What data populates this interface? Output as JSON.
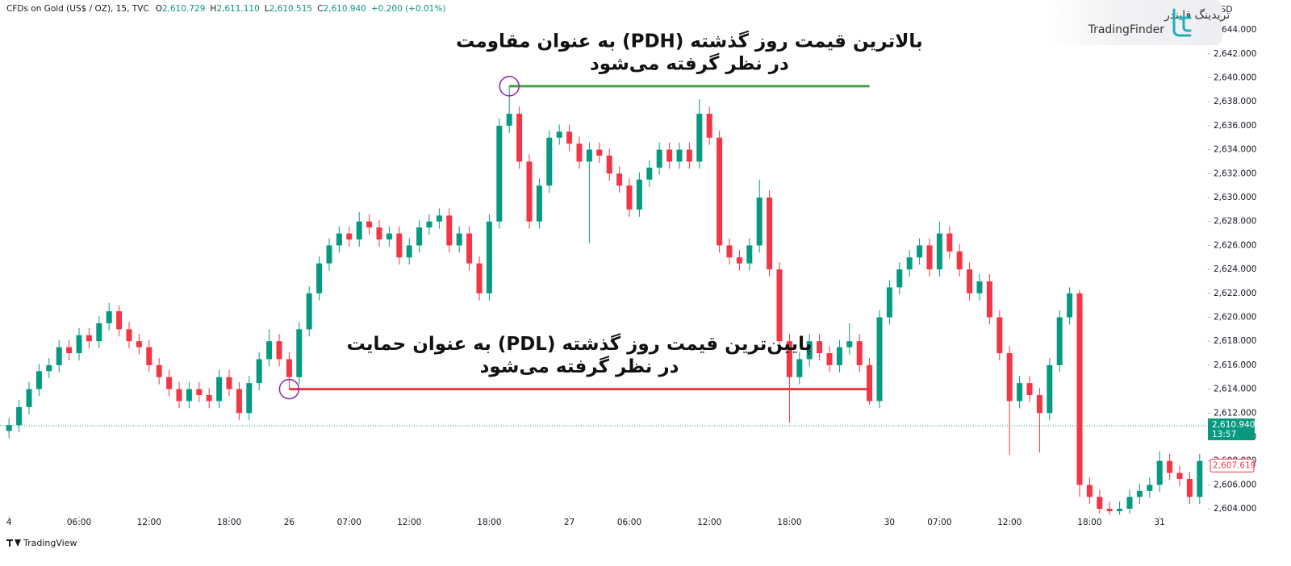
{
  "chart_data": {
    "type": "candlestick",
    "header": {
      "symbol": "CFDs on Gold (US$ / OZ), 15, TVC",
      "items": [
        {
          "key": "O",
          "value": "2,610.729"
        },
        {
          "key": "H",
          "value": "2,611.110"
        },
        {
          "key": "L",
          "value": "2,610.515"
        },
        {
          "key": "C",
          "value": "2,610.940"
        }
      ],
      "change": "+0.200 (+0.01%)"
    },
    "currency": "USD",
    "logo": {
      "fa": "تریدینگ فایندر",
      "en": "TradingFinder"
    },
    "footer": "TradingView",
    "up_color": "#089981",
    "down_color": "#f23645",
    "grid": false,
    "count": 120,
    "xticks": [
      {
        "value": 0,
        "label": "4"
      },
      {
        "value": 7,
        "label": "06:00"
      },
      {
        "value": 14,
        "label": "12:00"
      },
      {
        "value": 22,
        "label": "18:00"
      },
      {
        "value": 28,
        "label": "26"
      },
      {
        "value": 34,
        "label": "07:00"
      },
      {
        "value": 40,
        "label": "12:00"
      },
      {
        "value": 48,
        "label": "18:00"
      },
      {
        "value": 56,
        "label": "27"
      },
      {
        "value": 62,
        "label": "06:00"
      },
      {
        "value": 70,
        "label": "12:00"
      },
      {
        "value": 78,
        "label": "18:00"
      },
      {
        "value": 88,
        "label": "30"
      },
      {
        "value": 93,
        "label": "07:00"
      },
      {
        "value": 100,
        "label": "12:00"
      },
      {
        "value": 108,
        "label": "18:00"
      },
      {
        "value": 115,
        "label": "31"
      }
    ],
    "ylim": [
      2603.4,
      2646.5
    ],
    "yticks": [
      {
        "value": 2604,
        "label": "2,604.000"
      },
      {
        "value": 2606,
        "label": "2,606.000"
      },
      {
        "value": 2608,
        "label": "2,608.000"
      },
      {
        "value": 2610,
        "label": "2,610.000"
      },
      {
        "value": 2612,
        "label": "2,612.000"
      },
      {
        "value": 2614,
        "label": "2,614.000"
      },
      {
        "value": 2616,
        "label": "2,616.000"
      },
      {
        "value": 2618,
        "label": "2,618.000"
      },
      {
        "value": 2620,
        "label": "2,620.000"
      },
      {
        "value": 2622,
        "label": "2,622.000"
      },
      {
        "value": 2624,
        "label": "2,624.000"
      },
      {
        "value": 2626,
        "label": "2,626.000"
      },
      {
        "value": 2628,
        "label": "2,628.000"
      },
      {
        "value": 2630,
        "label": "2,630.000"
      },
      {
        "value": 2632,
        "label": "2,632.000"
      },
      {
        "value": 2634,
        "label": "2,634.000"
      },
      {
        "value": 2636,
        "label": "2,636.000"
      },
      {
        "value": 2638,
        "label": "2,638.000"
      },
      {
        "value": 2640,
        "label": "2,640.000"
      },
      {
        "value": 2642,
        "label": "2,642.000"
      },
      {
        "value": 2644,
        "label": "2,644.000"
      }
    ],
    "open": [
      2610.5,
      2611.0,
      2612.5,
      2614.0,
      2615.5,
      2616.0,
      2617.5,
      2617.0,
      2618.5,
      2618.0,
      2619.5,
      2620.5,
      2619.0,
      2618.0,
      2617.5,
      2616.0,
      2615.0,
      2614.0,
      2613.0,
      2614.0,
      2613.5,
      2613.0,
      2615.0,
      2614.0,
      2612.0,
      2614.5,
      2616.5,
      2618.0,
      2616.5,
      2615.0,
      2619.0,
      2622.0,
      2624.5,
      2626.0,
      2627.0,
      2626.5,
      2628.0,
      2627.5,
      2626.5,
      2627.0,
      2625.0,
      2626.0,
      2627.5,
      2628.0,
      2628.5,
      2626.0,
      2627.0,
      2624.5,
      2622.0,
      2628.0,
      2636.0,
      2637.0,
      2633.0,
      2628.0,
      2631.0,
      2635.0,
      2635.5,
      2634.5,
      2633.0,
      2634.0,
      2633.5,
      2632.0,
      2631.0,
      2629.0,
      2631.5,
      2632.5,
      2634.0,
      2633.0,
      2634.0,
      2633.0,
      2637.0,
      2635.0,
      2626.0,
      2625.0,
      2624.5,
      2626.0,
      2630.0,
      2624.0,
      2618.0,
      2615.0,
      2616.5,
      2618.0,
      2617.0,
      2616.0,
      2617.5,
      2618.0,
      2616.0,
      2613.0,
      2620.0,
      2622.5,
      2624.0,
      2625.0,
      2626.0,
      2624.0,
      2627.0,
      2625.5,
      2624.0,
      2622.0,
      2623.0,
      2620.0,
      2617.0,
      2613.0,
      2614.5,
      2613.5,
      2612.0,
      2616.0,
      2620.0,
      2622.0,
      2606.0,
      2605.0,
      2604.0,
      2603.8,
      2604.0,
      2605.0,
      2605.5,
      2606.0,
      2608.0,
      2607.0,
      2606.5,
      2605.0
    ],
    "high": [
      2611.6,
      2613.1,
      2614.6,
      2616.1,
      2616.6,
      2618.1,
      2618.1,
      2619.1,
      2619.1,
      2620.1,
      2621.2,
      2621.0,
      2619.6,
      2618.6,
      2618.1,
      2616.6,
      2615.6,
      2614.6,
      2614.6,
      2614.6,
      2614.1,
      2615.6,
      2615.6,
      2614.6,
      2615.1,
      2617.1,
      2619.0,
      2618.6,
      2617.1,
      2619.6,
      2622.6,
      2625.1,
      2626.6,
      2627.6,
      2627.6,
      2628.8,
      2628.6,
      2628.1,
      2627.6,
      2627.6,
      2626.6,
      2628.1,
      2628.6,
      2629.1,
      2629.1,
      2627.6,
      2627.6,
      2625.1,
      2628.6,
      2636.6,
      2639.3,
      2637.6,
      2633.6,
      2631.6,
      2635.6,
      2636.1,
      2636.1,
      2635.1,
      2634.6,
      2634.6,
      2634.1,
      2632.6,
      2631.6,
      2632.1,
      2633.1,
      2634.6,
      2634.6,
      2634.6,
      2634.6,
      2638.2,
      2637.6,
      2635.6,
      2626.6,
      2625.6,
      2626.6,
      2631.5,
      2630.6,
      2624.6,
      2618.6,
      2617.1,
      2618.6,
      2618.6,
      2617.6,
      2618.1,
      2619.5,
      2618.6,
      2616.6,
      2620.6,
      2623.1,
      2624.6,
      2625.6,
      2626.6,
      2626.6,
      2628.0,
      2627.6,
      2626.1,
      2624.6,
      2623.6,
      2623.6,
      2620.6,
      2617.6,
      2615.1,
      2615.1,
      2614.1,
      2616.6,
      2620.6,
      2622.5,
      2622.3,
      2606.6,
      2605.6,
      2604.6,
      2604.6,
      2605.6,
      2606.1,
      2606.6,
      2608.8,
      2608.6,
      2607.6,
      2607.1,
      2608.6
    ],
    "low": [
      2609.9,
      2610.4,
      2611.9,
      2613.4,
      2614.9,
      2615.4,
      2616.4,
      2616.4,
      2617.4,
      2617.4,
      2618.9,
      2618.4,
      2617.4,
      2616.9,
      2615.4,
      2614.4,
      2613.4,
      2612.4,
      2612.4,
      2612.9,
      2612.4,
      2612.4,
      2613.4,
      2611.4,
      2611.4,
      2613.9,
      2615.9,
      2615.9,
      2614.0,
      2614.4,
      2618.4,
      2621.4,
      2623.9,
      2625.4,
      2625.9,
      2625.9,
      2626.9,
      2625.9,
      2625.9,
      2624.4,
      2624.4,
      2625.4,
      2626.9,
      2627.4,
      2625.4,
      2625.4,
      2623.9,
      2621.4,
      2621.4,
      2627.4,
      2635.4,
      2632.4,
      2627.4,
      2627.4,
      2630.4,
      2634.4,
      2633.9,
      2632.4,
      2626.2,
      2632.9,
      2631.4,
      2630.4,
      2628.4,
      2628.4,
      2630.9,
      2631.9,
      2632.4,
      2632.4,
      2632.4,
      2632.4,
      2634.4,
      2625.4,
      2624.4,
      2623.9,
      2623.9,
      2625.4,
      2623.4,
      2617.4,
      2611.2,
      2614.4,
      2615.9,
      2616.4,
      2615.4,
      2615.4,
      2616.9,
      2615.4,
      2612.7,
      2612.4,
      2619.4,
      2621.9,
      2623.4,
      2624.4,
      2623.4,
      2623.4,
      2624.9,
      2623.4,
      2621.4,
      2621.4,
      2619.4,
      2616.4,
      2608.5,
      2612.4,
      2612.9,
      2608.7,
      2611.4,
      2615.4,
      2619.4,
      2605.0,
      2604.4,
      2603.6,
      2603.5,
      2603.5,
      2603.6,
      2604.4,
      2604.9,
      2605.4,
      2606.4,
      2605.9,
      2604.4,
      2604.4
    ],
    "close": [
      2611.0,
      2612.5,
      2614.0,
      2615.5,
      2616.0,
      2617.5,
      2617.0,
      2618.5,
      2618.0,
      2619.5,
      2620.5,
      2619.0,
      2618.0,
      2617.5,
      2616.0,
      2615.0,
      2614.0,
      2613.0,
      2614.0,
      2613.5,
      2613.0,
      2615.0,
      2614.0,
      2612.0,
      2614.5,
      2616.5,
      2618.0,
      2616.5,
      2615.0,
      2619.0,
      2622.0,
      2624.5,
      2626.0,
      2627.0,
      2626.5,
      2628.0,
      2627.5,
      2626.5,
      2627.0,
      2625.0,
      2626.0,
      2627.5,
      2628.0,
      2628.5,
      2626.0,
      2627.0,
      2624.5,
      2622.0,
      2628.0,
      2636.0,
      2637.0,
      2633.0,
      2628.0,
      2631.0,
      2635.0,
      2635.5,
      2634.5,
      2633.0,
      2634.0,
      2633.5,
      2632.0,
      2631.0,
      2629.0,
      2631.5,
      2632.5,
      2634.0,
      2633.0,
      2634.0,
      2633.0,
      2637.0,
      2635.0,
      2626.0,
      2625.0,
      2624.5,
      2626.0,
      2630.0,
      2624.0,
      2618.0,
      2615.0,
      2616.5,
      2618.0,
      2617.0,
      2616.0,
      2617.5,
      2618.0,
      2616.0,
      2613.0,
      2620.0,
      2622.5,
      2624.0,
      2625.0,
      2626.0,
      2624.0,
      2627.0,
      2625.5,
      2624.0,
      2622.0,
      2623.0,
      2620.0,
      2617.0,
      2613.0,
      2614.5,
      2613.5,
      2612.0,
      2616.0,
      2620.0,
      2622.0,
      2606.0,
      2605.0,
      2604.0,
      2603.8,
      2604.0,
      2605.0,
      2605.5,
      2606.0,
      2608.0,
      2607.0,
      2606.5,
      2605.0,
      2608.0
    ],
    "levels": [
      {
        "value": 2639.3,
        "from": 50,
        "to": 86,
        "color": "#43a047",
        "text": [
          "بالاترین قیمت روز گذشته (PDH) به عنوان مقاومت",
          "در نظر گرفته می‌شود"
        ]
      },
      {
        "value": 2614.0,
        "from": 28,
        "to": 86,
        "color": "#e53945",
        "text": [
          "پایین‌ترین قیمت روز گذشته (PDL) به عنوان حمایت",
          "در نظر گرفته می‌شود"
        ]
      }
    ],
    "marker_color": "#8e24aa",
    "last_price": {
      "value": 2610.94,
      "label": "2,610.940",
      "countdown": "13:57",
      "color": "#089981"
    },
    "alert_price": {
      "value": 2607.619,
      "label": "2,607.619",
      "color": "#f23645"
    }
  }
}
